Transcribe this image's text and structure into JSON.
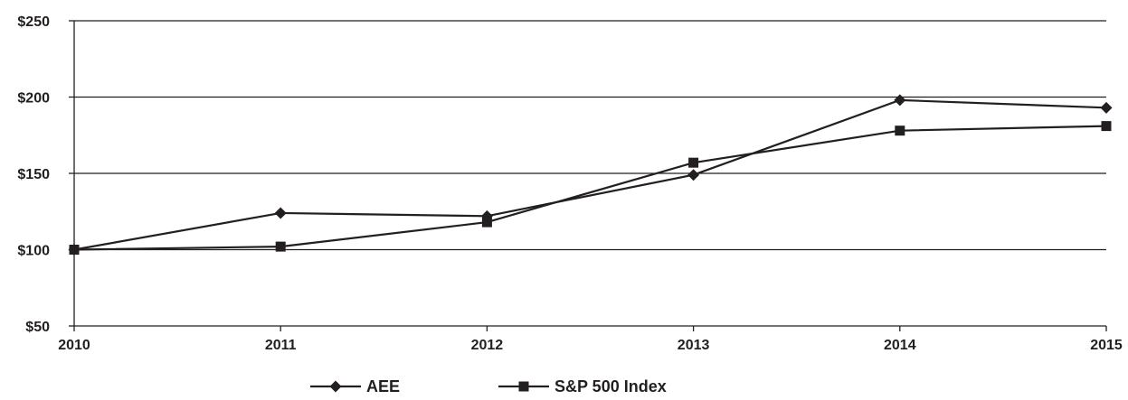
{
  "chart_data": {
    "type": "line",
    "title": "",
    "xlabel": "",
    "ylabel": "",
    "x": [
      "2010",
      "2011",
      "2012",
      "2013",
      "2014",
      "2015"
    ],
    "ylim": [
      50,
      250
    ],
    "yticks": [
      50,
      100,
      150,
      200,
      250
    ],
    "ytick_labels": [
      "$50",
      "$100",
      "$150",
      "$200",
      "$250"
    ],
    "grid": true,
    "legend_position": "bottom",
    "series": [
      {
        "name": "AEE",
        "marker": "diamond",
        "values": [
          100,
          124,
          122,
          149,
          198,
          193
        ]
      },
      {
        "name": "S&P 500 Index",
        "marker": "square",
        "values": [
          100,
          102,
          118,
          157,
          178,
          181
        ]
      }
    ],
    "colors": {
      "line": "#231f20",
      "background": "#ffffff"
    }
  }
}
